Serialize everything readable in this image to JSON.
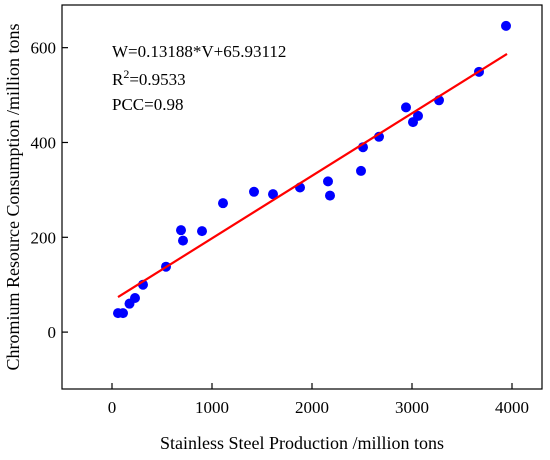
{
  "chart_data": {
    "type": "scatter",
    "xlabel": "Stainless Steel Production /million tons",
    "ylabel": "Chromium Resource Consumption /million tons",
    "xlim": [
      -500,
      4300
    ],
    "ylim": [
      -120,
      690
    ],
    "x_ticks": [
      0,
      1000,
      2000,
      3000,
      4000
    ],
    "y_ticks": [
      0,
      200,
      400,
      600
    ],
    "x_tick_labels": [
      "0",
      "1000",
      "2000",
      "3000",
      "4000"
    ],
    "y_tick_labels": [
      "0",
      "200",
      "400",
      "600"
    ],
    "grid": false,
    "points": [
      {
        "x": 60,
        "y": 40
      },
      {
        "x": 110,
        "y": 40
      },
      {
        "x": 175,
        "y": 60
      },
      {
        "x": 230,
        "y": 72
      },
      {
        "x": 310,
        "y": 100
      },
      {
        "x": 540,
        "y": 138
      },
      {
        "x": 690,
        "y": 215
      },
      {
        "x": 710,
        "y": 193
      },
      {
        "x": 900,
        "y": 213
      },
      {
        "x": 1110,
        "y": 272
      },
      {
        "x": 1420,
        "y": 296
      },
      {
        "x": 1610,
        "y": 291
      },
      {
        "x": 1880,
        "y": 305
      },
      {
        "x": 2160,
        "y": 318
      },
      {
        "x": 2180,
        "y": 288
      },
      {
        "x": 2490,
        "y": 340
      },
      {
        "x": 2510,
        "y": 390
      },
      {
        "x": 2670,
        "y": 412
      },
      {
        "x": 2940,
        "y": 474
      },
      {
        "x": 3010,
        "y": 443
      },
      {
        "x": 3060,
        "y": 456
      },
      {
        "x": 3270,
        "y": 489
      },
      {
        "x": 3670,
        "y": 549
      },
      {
        "x": 3940,
        "y": 646
      }
    ],
    "fit_line": {
      "slope": 0.13188,
      "intercept": 65.93112,
      "x_range": [
        60,
        3950
      ]
    },
    "annotations": [
      "W=0.13188*V+65.93112",
      "R",
      "2",
      "=0.9533",
      "PCC=0.98"
    ],
    "marker_color": "#0000ff",
    "line_color": "#ff0000"
  }
}
